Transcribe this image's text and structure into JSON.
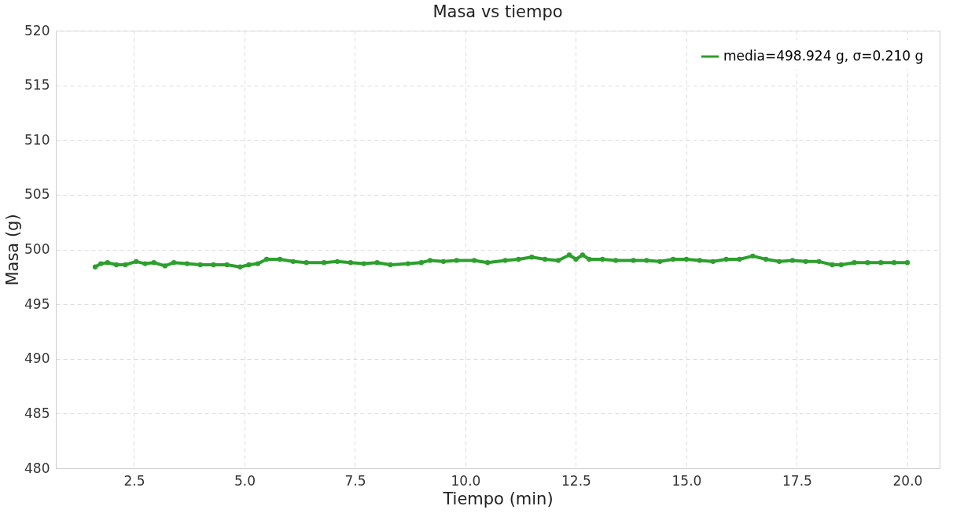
{
  "chart_data": {
    "type": "line",
    "title": "Masa vs tiempo",
    "xlabel": "Tiempo (min)",
    "ylabel": "Masa (g)",
    "x": [
      1.62,
      1.75,
      1.9,
      2.1,
      2.3,
      2.55,
      2.75,
      2.95,
      3.2,
      3.4,
      3.7,
      4.0,
      4.3,
      4.6,
      4.9,
      5.1,
      5.3,
      5.5,
      5.8,
      6.1,
      6.4,
      6.8,
      7.1,
      7.4,
      7.7,
      8.0,
      8.3,
      8.7,
      9.0,
      9.2,
      9.5,
      9.8,
      10.2,
      10.5,
      10.9,
      11.2,
      11.5,
      11.8,
      12.1,
      12.35,
      12.5,
      12.65,
      12.8,
      13.1,
      13.4,
      13.8,
      14.1,
      14.4,
      14.7,
      15.0,
      15.3,
      15.6,
      15.9,
      16.2,
      16.5,
      16.8,
      17.1,
      17.4,
      17.7,
      18.0,
      18.3,
      18.5,
      18.8,
      19.1,
      19.4,
      19.7,
      20.0
    ],
    "series": [
      {
        "name": "media=498.924 g, σ=0.210 g",
        "color": "#2ca02c",
        "values": [
          498.4,
          498.7,
          498.8,
          498.6,
          498.6,
          498.9,
          498.7,
          498.8,
          498.5,
          498.8,
          498.7,
          498.6,
          498.6,
          498.6,
          498.4,
          498.6,
          498.7,
          499.1,
          499.1,
          498.9,
          498.8,
          498.8,
          498.9,
          498.8,
          498.7,
          498.8,
          498.6,
          498.7,
          498.8,
          499.0,
          498.9,
          499.0,
          499.0,
          498.8,
          499.0,
          499.1,
          499.3,
          499.1,
          499.0,
          499.5,
          499.1,
          499.5,
          499.1,
          499.1,
          499.0,
          499.0,
          499.0,
          498.9,
          499.1,
          499.1,
          499.0,
          498.9,
          499.1,
          499.1,
          499.4,
          499.1,
          498.9,
          499.0,
          498.9,
          498.9,
          498.6,
          498.6,
          498.8,
          498.8,
          498.8,
          498.8,
          498.8
        ]
      }
    ],
    "xlim": [
      0.73,
      20.73
    ],
    "xticks": [
      {
        "value": 2.5,
        "label": "2.5"
      },
      {
        "value": 5,
        "label": "5.0"
      },
      {
        "value": 7.5,
        "label": "7.5"
      },
      {
        "value": 10,
        "label": "10.0"
      },
      {
        "value": 12.5,
        "label": "12.5"
      },
      {
        "value": 15,
        "label": "15.0"
      },
      {
        "value": 17.5,
        "label": "17.5"
      },
      {
        "value": 20,
        "label": "20.0"
      }
    ],
    "ylim": [
      480,
      520
    ],
    "yticks": [
      480,
      485,
      490,
      495,
      500,
      505,
      510,
      515,
      520
    ],
    "grid": true,
    "legend": "top right",
    "marker": "circle",
    "line_style": "solid"
  }
}
